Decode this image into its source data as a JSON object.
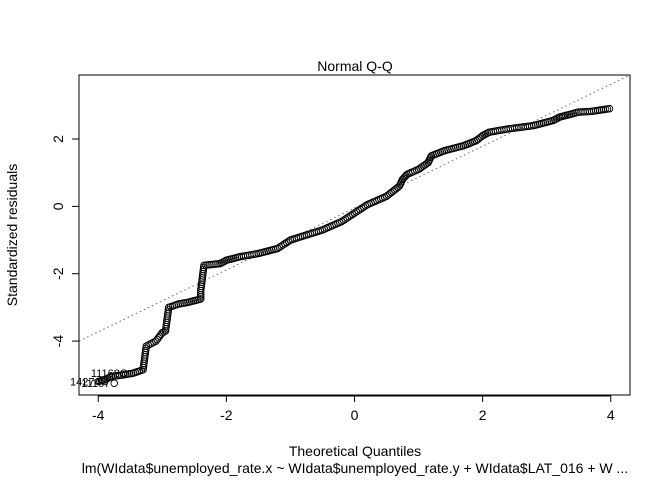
{
  "chart_data": {
    "type": "scatter",
    "title": "Normal Q-Q",
    "xlabel": "Theoretical Quantiles",
    "ylabel": "Standardized residuals",
    "subtitle": "lm(WIdata$unemployed_rate.x ~ WIdata$unemployed_rate.y + WIdata$LAT_016 + W ...",
    "xlim": [
      -4.3,
      4.3
    ],
    "ylim": [
      -5.6,
      3.9
    ],
    "x_ticks": [
      -4,
      -2,
      0,
      2,
      4
    ],
    "x_tick_labels": [
      "-4",
      "-2",
      "0",
      "2",
      "4"
    ],
    "y_ticks": [
      -4,
      -2,
      0,
      2
    ],
    "y_tick_labels": [
      "-4",
      "-2",
      "0",
      "2"
    ],
    "reference_line": {
      "style": "dotted",
      "points": [
        [
          -4.3,
          -4.0
        ],
        [
          4.3,
          3.9
        ]
      ]
    },
    "point_style": "open circle",
    "grid": false,
    "quantile_curve": [
      [
        -4.0,
        -5.2
      ],
      [
        -3.9,
        -5.15
      ],
      [
        -3.8,
        -5.05
      ],
      [
        -3.6,
        -5.0
      ],
      [
        -3.45,
        -4.95
      ],
      [
        -3.3,
        -4.85
      ],
      [
        -3.25,
        -4.15
      ],
      [
        -3.1,
        -4.0
      ],
      [
        -3.0,
        -3.75
      ],
      [
        -2.95,
        -3.7
      ],
      [
        -2.9,
        -3.0
      ],
      [
        -2.75,
        -2.9
      ],
      [
        -2.6,
        -2.85
      ],
      [
        -2.4,
        -2.75
      ],
      [
        -2.4,
        -2.5
      ],
      [
        -2.35,
        -1.75
      ],
      [
        -2.1,
        -1.7
      ],
      [
        -2.0,
        -1.6
      ],
      [
        -1.8,
        -1.5
      ],
      [
        -1.5,
        -1.4
      ],
      [
        -1.2,
        -1.25
      ],
      [
        -1.0,
        -1.0
      ],
      [
        -0.5,
        -0.7
      ],
      [
        -0.2,
        -0.45
      ],
      [
        0.0,
        -0.2
      ],
      [
        0.2,
        0.05
      ],
      [
        0.5,
        0.3
      ],
      [
        0.6,
        0.45
      ],
      [
        0.7,
        0.6
      ],
      [
        0.75,
        0.8
      ],
      [
        0.82,
        0.95
      ],
      [
        1.0,
        1.1
      ],
      [
        1.15,
        1.3
      ],
      [
        1.2,
        1.5
      ],
      [
        1.4,
        1.65
      ],
      [
        1.7,
        1.8
      ],
      [
        1.9,
        1.95
      ],
      [
        2.0,
        2.1
      ],
      [
        2.1,
        2.2
      ],
      [
        2.4,
        2.3
      ],
      [
        2.8,
        2.4
      ],
      [
        3.1,
        2.55
      ],
      [
        3.2,
        2.65
      ],
      [
        3.3,
        2.7
      ],
      [
        3.5,
        2.8
      ],
      [
        3.7,
        2.82
      ],
      [
        3.98,
        2.9
      ]
    ],
    "labeled_points": [
      {
        "label": "11168",
        "x": -3.6,
        "y": -4.95
      },
      {
        "label": "14274",
        "x": -3.9,
        "y": -5.2
      },
      {
        "label": "11167",
        "x": -3.75,
        "y": -5.25
      }
    ]
  }
}
